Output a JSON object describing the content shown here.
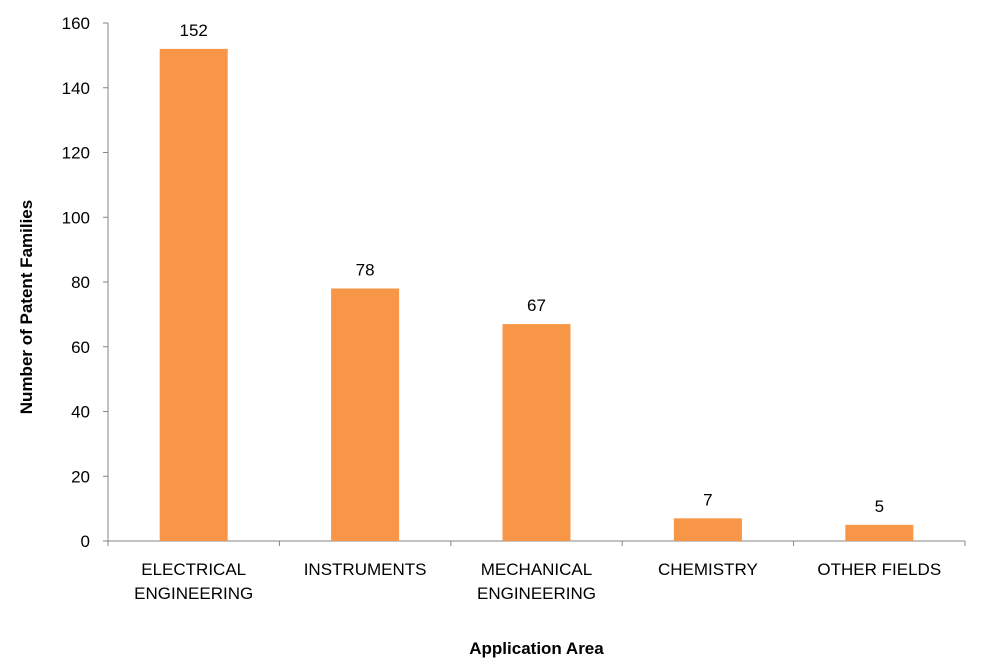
{
  "chart_data": {
    "type": "bar",
    "title": "",
    "xlabel": "Application Area",
    "ylabel": "Number of Patent Families",
    "categories": [
      "ELECTRICAL ENGINEERING",
      "INSTRUMENTS",
      "MECHANICAL ENGINEERING",
      "CHEMISTRY",
      "OTHER FIELDS"
    ],
    "category_lines": [
      [
        "ELECTRICAL",
        "ENGINEERING"
      ],
      [
        "INSTRUMENTS"
      ],
      [
        "MECHANICAL",
        "ENGINEERING"
      ],
      [
        "CHEMISTRY"
      ],
      [
        "OTHER FIELDS"
      ]
    ],
    "values": [
      152,
      78,
      67,
      7,
      5
    ],
    "ylim": [
      0,
      160
    ],
    "yticks": [
      0,
      20,
      40,
      60,
      80,
      100,
      120,
      140,
      160
    ],
    "grid": false,
    "legend": "none",
    "bar_color": "#F79646"
  }
}
